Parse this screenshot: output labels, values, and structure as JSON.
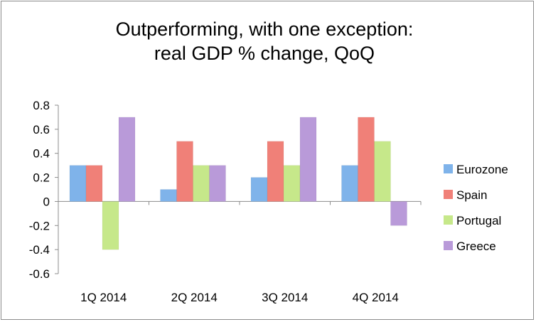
{
  "chart_data": {
    "type": "bar",
    "title_line1": "Outperforming, with one exception:",
    "title_line2": "real GDP % change, QoQ",
    "categories": [
      "1Q 2014",
      "2Q 2014",
      "3Q 2014",
      "4Q 2014"
    ],
    "series": [
      {
        "name": "Eurozone",
        "values": [
          0.3,
          0.1,
          0.2,
          0.3
        ],
        "color": "#7fb3ea"
      },
      {
        "name": "Spain",
        "values": [
          0.3,
          0.5,
          0.5,
          0.7
        ],
        "color": "#f08078"
      },
      {
        "name": "Portugal",
        "values": [
          -0.4,
          0.3,
          0.3,
          0.5
        ],
        "color": "#c6e88a"
      },
      {
        "name": "Greece",
        "values": [
          0.7,
          0.3,
          0.7,
          -0.2
        ],
        "color": "#b99ad9"
      }
    ],
    "yticks": [
      "0.8",
      "0.6",
      "0.4",
      "0.2",
      "0",
      "-0.2",
      "-0.4",
      "-0.6"
    ],
    "ylim": [
      -0.6,
      0.8
    ],
    "legend_position": "right",
    "grid": false
  }
}
